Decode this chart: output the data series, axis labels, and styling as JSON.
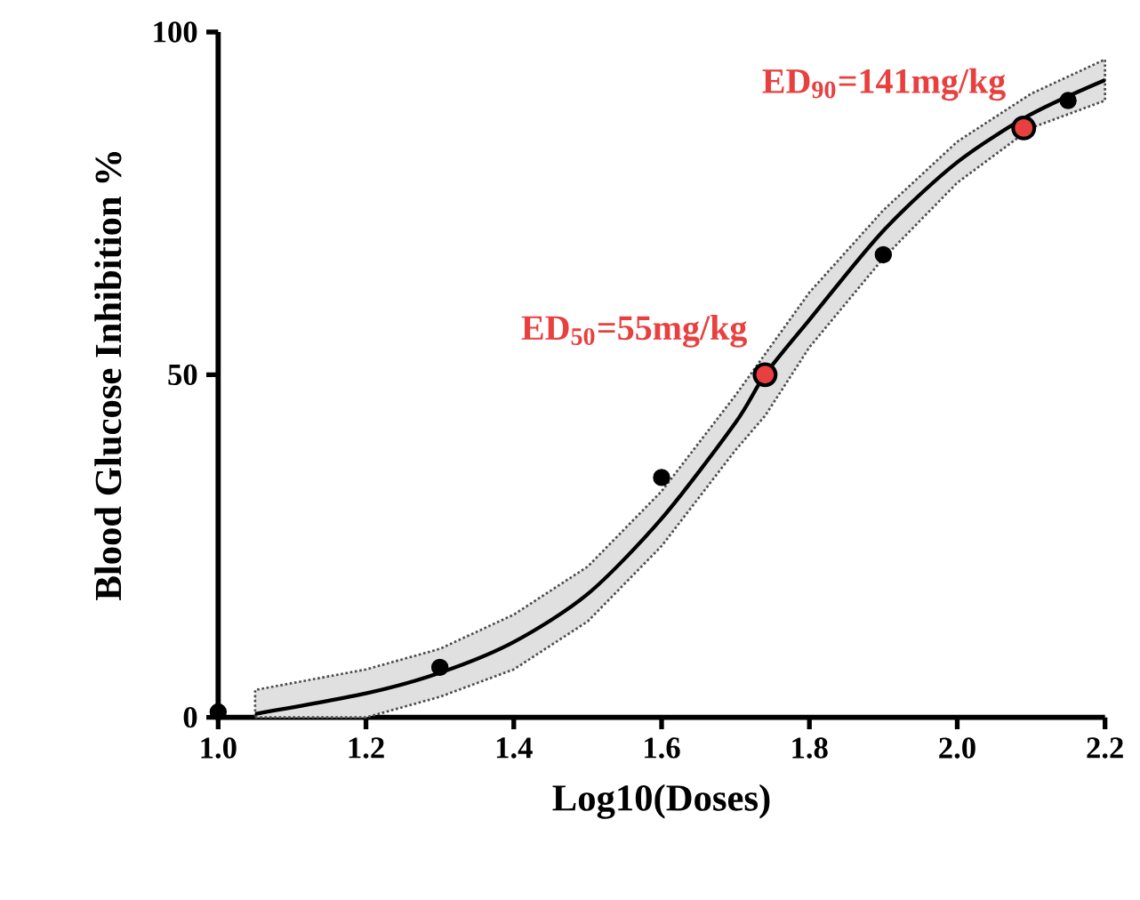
{
  "chart_data": {
    "type": "scatter",
    "xlabel": "Log10(Doses)",
    "ylabel": "Blood Glucose Inhibition %",
    "xlim": [
      1.0,
      2.2
    ],
    "ylim": [
      0,
      100
    ],
    "xticks": [
      {
        "value": 1.0,
        "label": "1.0"
      },
      {
        "value": 1.2,
        "label": "1.2"
      },
      {
        "value": 1.4,
        "label": "1.4"
      },
      {
        "value": 1.6,
        "label": "1.6"
      },
      {
        "value": 1.8,
        "label": "1.8"
      },
      {
        "value": 2.0,
        "label": "2.0"
      },
      {
        "value": 2.2,
        "label": "2.2"
      }
    ],
    "yticks": [
      0,
      50,
      100
    ],
    "grid": false,
    "series": [
      {
        "type": "line",
        "color": "#000000",
        "marker": "none",
        "x": [
          1.05,
          1.2,
          1.3,
          1.4,
          1.5,
          1.6,
          1.7,
          1.74,
          1.8,
          1.9,
          2.0,
          2.1,
          2.2
        ],
        "values": [
          0.5,
          3.5,
          6.5,
          11,
          18,
          29,
          43,
          50,
          58,
          71,
          81,
          88,
          93
        ],
        "lower": [
          0,
          0,
          3,
          7,
          14,
          25,
          39,
          44,
          54,
          67,
          78,
          86,
          90
        ],
        "upper": [
          4,
          7,
          10,
          15,
          22,
          33,
          47,
          53,
          62,
          74,
          84,
          91,
          96
        ]
      },
      {
        "color": "#000000",
        "marker": "circle",
        "x": [
          1.0,
          1.3,
          1.6,
          1.9,
          2.15
        ],
        "values": [
          0.8,
          7.3,
          35,
          67.5,
          90
        ]
      },
      {
        "color": "#e8403f",
        "marker": "circle",
        "x": [
          1.74,
          2.09
        ],
        "values": [
          50,
          86
        ]
      }
    ],
    "annotations": [
      {
        "text": "ED$_{50}$=55mg/kg",
        "x": 1.74,
        "y": 50
      },
      {
        "text": "ED$_{90}$=141mg/kg",
        "x": 2.09,
        "y": 86
      }
    ]
  }
}
